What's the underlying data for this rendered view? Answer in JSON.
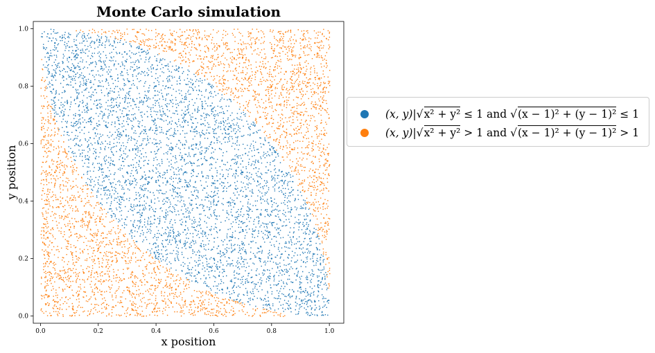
{
  "chart_data": {
    "type": "scatter",
    "title": "Monte Carlo simulation",
    "xlabel": "x position",
    "ylabel": "y position",
    "xlim": [
      -0.025,
      1.05
    ],
    "ylim": [
      -0.025,
      1.025
    ],
    "x_ticks": [
      "0.0",
      "0.2",
      "0.4",
      "0.6",
      "0.8",
      "1.0"
    ],
    "y_ticks": [
      "0.0",
      "0.2",
      "0.4",
      "0.6",
      "0.8",
      "1.0"
    ],
    "grid": false,
    "legend_position": "outside right, center",
    "series": [
      {
        "name": "(x, y)|√(x²+y²) ≤ 1 and √((x−1)²+(y−1)²) ≤ 1",
        "color": "#1f77b4",
        "region": "points with x²+y² ≤ 1 and (x−1)²+(y−1)² ≤ 1",
        "points": [
          [
            0.05,
            0.95
          ],
          [
            0.1,
            0.9
          ],
          [
            0.2,
            0.8
          ],
          [
            0.3,
            0.7
          ],
          [
            0.4,
            0.6
          ],
          [
            0.5,
            0.5
          ],
          [
            0.6,
            0.4
          ],
          [
            0.7,
            0.3
          ],
          [
            0.8,
            0.2
          ],
          [
            0.9,
            0.1
          ],
          [
            0.95,
            0.05
          ],
          [
            0.3,
            0.5
          ],
          [
            0.5,
            0.3
          ],
          [
            0.5,
            0.7
          ],
          [
            0.7,
            0.5
          ],
          [
            0.2,
            0.6
          ],
          [
            0.6,
            0.2
          ],
          [
            0.4,
            0.8
          ],
          [
            0.8,
            0.4
          ],
          [
            0.35,
            0.35
          ],
          [
            0.65,
            0.65
          ]
        ]
      },
      {
        "name": "(x, y)|√(x²+y²) > 1 and √((x−1)²+(y−1)²) > 1",
        "color": "#ff7f0e",
        "region": "remaining points in the unit square",
        "points": [
          [
            0.05,
            0.05
          ],
          [
            0.1,
            0.1
          ],
          [
            0.2,
            0.2
          ],
          [
            0.1,
            0.3
          ],
          [
            0.3,
            0.1
          ],
          [
            0.05,
            0.5
          ],
          [
            0.5,
            0.05
          ],
          [
            0.95,
            0.95
          ],
          [
            0.9,
            0.9
          ],
          [
            0.8,
            0.8
          ],
          [
            0.9,
            0.7
          ],
          [
            0.7,
            0.9
          ],
          [
            0.95,
            0.5
          ],
          [
            0.5,
            0.95
          ],
          [
            0.15,
            0.15
          ],
          [
            0.85,
            0.85
          ]
        ]
      }
    ]
  },
  "legend": {
    "entries": [
      {
        "color": "#1f77b4",
        "set": "(x, y)|",
        "cond1": "x² + y²",
        "op1": "≤ 1",
        "conj": "and",
        "cond2": "(x − 1)² + (y − 1)²",
        "op2": "≤ 1"
      },
      {
        "color": "#ff7f0e",
        "set": "(x, y)|",
        "cond1": "x² + y²",
        "op1": "> 1",
        "conj": "and",
        "cond2": "(x − 1)² + (y − 1)²",
        "op2": "> 1"
      }
    ]
  }
}
